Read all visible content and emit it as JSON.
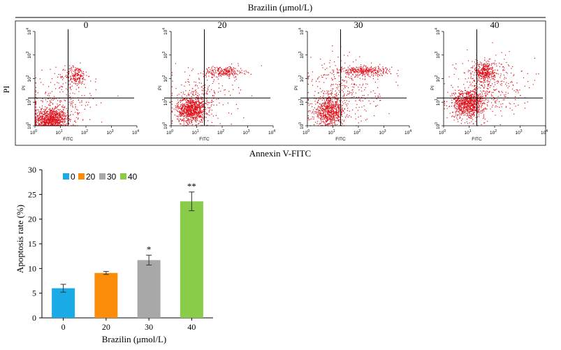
{
  "chart_data": [
    {
      "type": "scatter",
      "title": "Brazilin (μmol/L)",
      "xlabel": "Annexin V-FITC",
      "ylabel": "PI",
      "panel_axis_x": "FITC",
      "panel_axis_y": "PI",
      "scale": "log",
      "xlim": [
        1,
        10000
      ],
      "ylim": [
        1,
        10000
      ],
      "tick_labels": [
        "10",
        "10",
        "10",
        "10",
        "10"
      ],
      "tick_exponents": [
        "0",
        "1",
        "2",
        "3",
        "4"
      ],
      "quadrant_gate": [
        20,
        15
      ],
      "point_color": "#e0121b",
      "panels": [
        {
          "label": "0",
          "clusters": [
            {
              "n": 900,
              "cx": 4,
              "cy": 1.8,
              "sx": 0.32,
              "sy": 0.25
            },
            {
              "n": 190,
              "cx": 40,
              "cy": 140,
              "sx": 0.22,
              "sy": 0.2
            },
            {
              "n": 280,
              "cx": 10,
              "cy": 10,
              "sx": 0.7,
              "sy": 0.65
            }
          ]
        },
        {
          "label": "20",
          "clusters": [
            {
              "n": 800,
              "cx": 6,
              "cy": 5,
              "sx": 0.28,
              "sy": 0.27
            },
            {
              "n": 220,
              "cx": 120,
              "cy": 200,
              "sx": 0.4,
              "sy": 0.12
            },
            {
              "n": 260,
              "cx": 15,
              "cy": 15,
              "sx": 0.65,
              "sy": 0.62
            }
          ]
        },
        {
          "label": "30",
          "clusters": [
            {
              "n": 650,
              "cx": 7,
              "cy": 4,
              "sx": 0.3,
              "sy": 0.3
            },
            {
              "n": 300,
              "cx": 170,
              "cy": 220,
              "sx": 0.5,
              "sy": 0.1
            },
            {
              "n": 330,
              "cx": 25,
              "cy": 30,
              "sx": 0.7,
              "sy": 0.7
            }
          ]
        },
        {
          "label": "40",
          "clusters": [
            {
              "n": 850,
              "cx": 9,
              "cy": 9,
              "sx": 0.32,
              "sy": 0.3
            },
            {
              "n": 330,
              "cx": 40,
              "cy": 200,
              "sx": 0.2,
              "sy": 0.22
            },
            {
              "n": 340,
              "cx": 60,
              "cy": 60,
              "sx": 0.65,
              "sy": 0.6
            }
          ]
        }
      ]
    },
    {
      "type": "bar",
      "categories": [
        "0",
        "20",
        "30",
        "40"
      ],
      "values": [
        6.0,
        9.1,
        11.7,
        23.6
      ],
      "errors": [
        0.8,
        0.3,
        1.0,
        1.9
      ],
      "significance": [
        "",
        "",
        "*",
        "**"
      ],
      "colors": [
        "#1aabe7",
        "#fb8d0b",
        "#a8a8a8",
        "#89cc4a"
      ],
      "legend": [
        "0",
        "20",
        "30",
        "40"
      ],
      "legend_position": "top-left",
      "xlabel": "Brazilin (μmol/L)",
      "ylabel": "Apoptosis rate (%)",
      "ylim": [
        0,
        30
      ],
      "yticks": [
        0,
        5,
        10,
        15,
        20,
        25,
        30
      ],
      "grid": false
    }
  ]
}
